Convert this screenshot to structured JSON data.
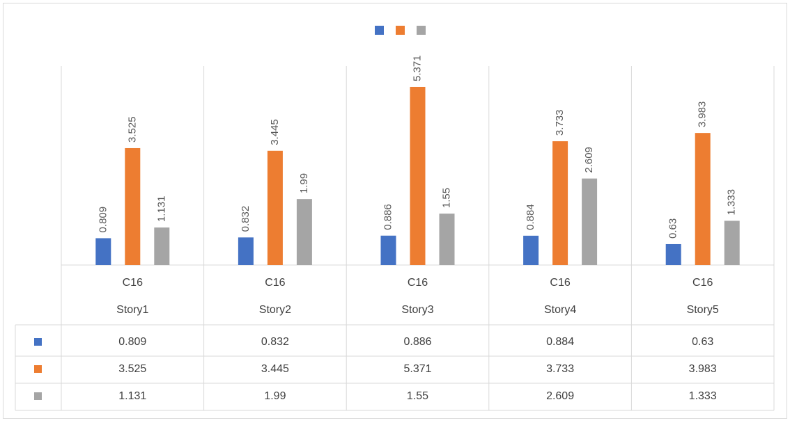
{
  "chart_data": {
    "type": "bar",
    "category_groups": [
      "C16",
      "C16",
      "C16",
      "C16",
      "C16"
    ],
    "categories": [
      "Story1",
      "Story2",
      "Story3",
      "Story4",
      "Story5"
    ],
    "series": [
      {
        "color": "#4472c4",
        "values": [
          0.809,
          0.832,
          0.886,
          0.884,
          0.63
        ]
      },
      {
        "color": "#ed7d31",
        "values": [
          3.525,
          3.445,
          5.371,
          3.733,
          3.983
        ]
      },
      {
        "color": "#a5a5a5",
        "values": [
          1.131,
          1.99,
          1.55,
          2.609,
          1.333
        ]
      }
    ],
    "ylim": [
      0,
      6
    ],
    "data_labels": true,
    "data_table": true,
    "legend": "top"
  }
}
